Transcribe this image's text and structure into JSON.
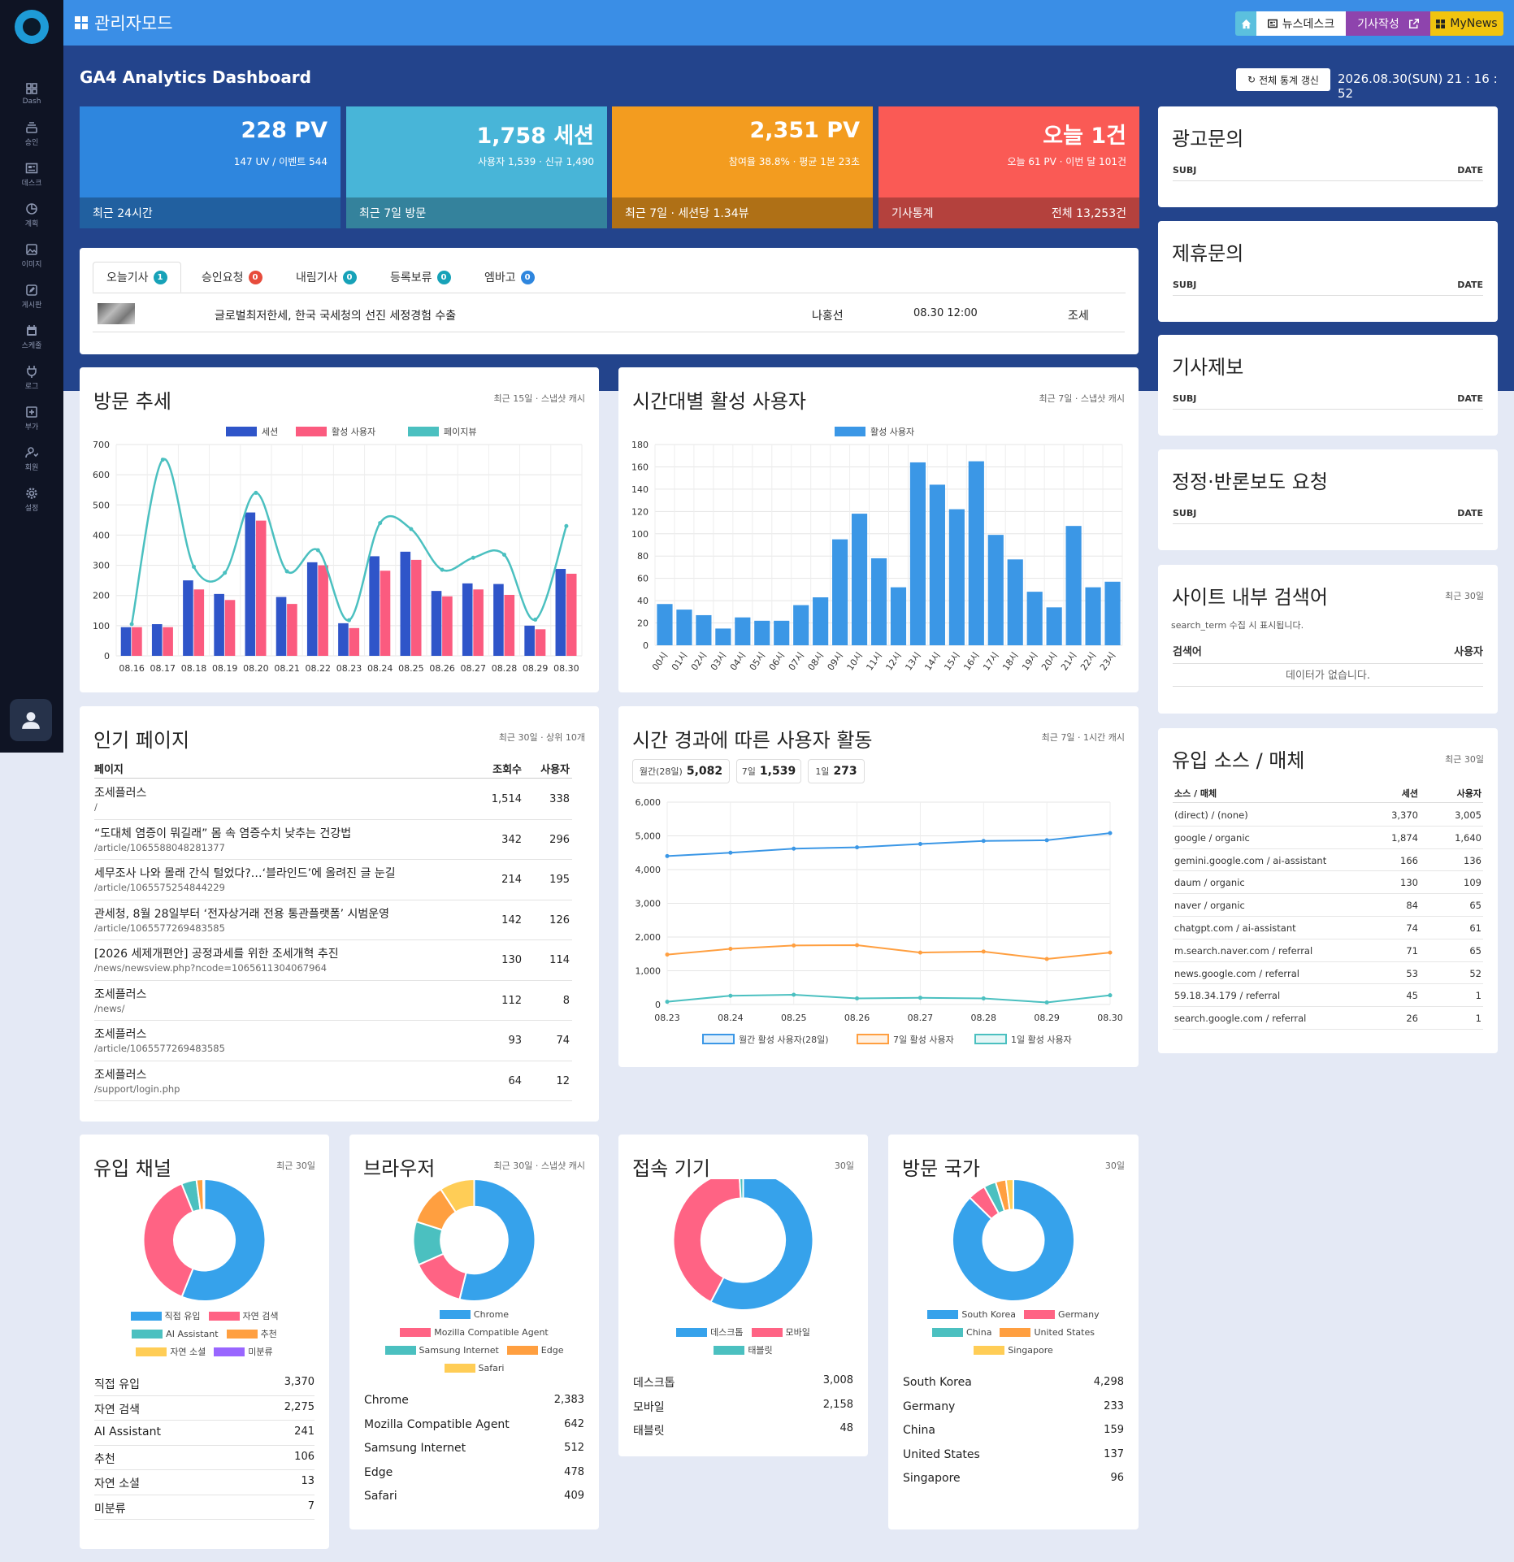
{
  "sidebar": {
    "items": [
      {
        "label": "Dash",
        "icon": "grid-icon"
      },
      {
        "label": "승인",
        "icon": "stack-icon"
      },
      {
        "label": "데스크",
        "icon": "newspaper-icon"
      },
      {
        "label": "계획",
        "icon": "pie-icon"
      },
      {
        "label": "이미지",
        "icon": "image-icon"
      },
      {
        "label": "게시판",
        "icon": "edit-icon"
      },
      {
        "label": "스케줄",
        "icon": "calendar-icon"
      },
      {
        "label": "로그",
        "icon": "plug-icon"
      },
      {
        "label": "부가",
        "icon": "plus-square-icon"
      },
      {
        "label": "회원",
        "icon": "user-icon"
      },
      {
        "label": "설정",
        "icon": "gear-icon"
      }
    ]
  },
  "topbar": {
    "title": "관리자모드",
    "newsdesk": "뉴스데스크",
    "write": "기사작성",
    "mynews": "MyNews"
  },
  "header": {
    "title": "GA4 Analytics Dashboard",
    "refresh": "전체 통계 갱신",
    "datetime": "2026.08.30(SUN) 21 : 16 : 52"
  },
  "kpis": [
    {
      "big": "228 PV",
      "sub": "147 UV  /  이벤트 544",
      "foot_left": "최근 24시간",
      "foot_right": "",
      "color": "#2e86de"
    },
    {
      "big": "1,758 세션",
      "sub": "사용자 1,539 · 신규 1,490",
      "foot_left": "최근 7일 방문",
      "foot_right": "",
      "color": "#48b5d8"
    },
    {
      "big": "2,351 PV",
      "sub": "참여율 38.8% · 평균 1분 23초",
      "foot_left": "최근 7일 · 세션당 1.34뷰",
      "foot_right": "",
      "color": "#f39c1f"
    },
    {
      "big": "오늘 1건",
      "sub": "오늘 61 PV · 이번 달 101건",
      "foot_left": "기사통계",
      "foot_right": "전체 13,253건",
      "color": "#fa5a55"
    }
  ],
  "tabs": [
    {
      "label": "오늘기사",
      "count": "1",
      "color": "#17a2b8"
    },
    {
      "label": "승인요청",
      "count": "0",
      "color": "#e74c3c"
    },
    {
      "label": "내림기사",
      "count": "0",
      "color": "#17a2b8"
    },
    {
      "label": "등록보류",
      "count": "0",
      "color": "#17a2b8"
    },
    {
      "label": "엠바고",
      "count": "0",
      "color": "#2e86de"
    }
  ],
  "article": {
    "title": "글로벌최저한세, 한국 국세청의 선진 세정경험 수출",
    "author": "나홍선",
    "time": "08.30 12:00",
    "section": "조세"
  },
  "side_inquiries": [
    {
      "title": "광고문의",
      "col1": "SUBJ",
      "col2": "DATE"
    },
    {
      "title": "제휴문의",
      "col1": "SUBJ",
      "col2": "DATE"
    },
    {
      "title": "기사제보",
      "col1": "SUBJ",
      "col2": "DATE"
    },
    {
      "title": "정정·반론보도 요청",
      "col1": "SUBJ",
      "col2": "DATE"
    }
  ],
  "search_terms": {
    "title": "사이트 내부 검색어",
    "note": "최근 30일",
    "hint": "search_term 수집 시 표시됩니다.",
    "col1": "검색어",
    "col2": "사용자",
    "empty": "데이터가 없습니다."
  },
  "sources": {
    "title": "유입 소스 / 매체",
    "note": "최근 30일",
    "headers": [
      "소스 / 매체",
      "세션",
      "사용자"
    ],
    "rows": [
      [
        "(direct) / (none)",
        "3,370",
        "3,005"
      ],
      [
        "google / organic",
        "1,874",
        "1,640"
      ],
      [
        "gemini.google.com / ai-assistant",
        "166",
        "136"
      ],
      [
        "daum / organic",
        "130",
        "109"
      ],
      [
        "naver / organic",
        "84",
        "65"
      ],
      [
        "chatgpt.com / ai-assistant",
        "74",
        "61"
      ],
      [
        "m.search.naver.com / referral",
        "71",
        "65"
      ],
      [
        "news.google.com / referral",
        "53",
        "52"
      ],
      [
        "59.18.34.179 / referral",
        "45",
        "1"
      ],
      [
        "search.google.com / referral",
        "26",
        "1"
      ]
    ]
  },
  "popular": {
    "title": "인기 페이지",
    "note": "최근 30일 · 상위 10개",
    "headers": [
      "페이지",
      "조회수",
      "사용자"
    ],
    "rows": [
      {
        "title": "조세플러스",
        "path": "/",
        "views": "1,514",
        "users": "338"
      },
      {
        "title": "“도대체 염증이 뭐길래” 몸 속 염증수치 낮추는 건강법",
        "path": "/article/1065588048281377",
        "views": "342",
        "users": "296"
      },
      {
        "title": "세무조사 나와 몰래 간식 털었다?…‘블라인드’에 올려진 글 눈길",
        "path": "/article/1065575254844229",
        "views": "214",
        "users": "195"
      },
      {
        "title": "관세청, 8월 28일부터 ‘전자상거래 전용 통관플랫폼’ 시범운영",
        "path": "/article/1065577269483585",
        "views": "142",
        "users": "126"
      },
      {
        "title": "[2026 세제개편안] 공정과세를 위한 조세개혁 추진",
        "path": "/news/newsview.php?ncode=1065611304067964",
        "views": "130",
        "users": "114"
      },
      {
        "title": "조세플러스",
        "path": "/news/",
        "views": "112",
        "users": "8"
      },
      {
        "title": "조세플러스",
        "path": "/article/1065577269483585",
        "views": "93",
        "users": "74"
      },
      {
        "title": "조세플러스",
        "path": "/support/login.php",
        "views": "64",
        "users": "12"
      }
    ]
  },
  "activity": {
    "title": "시간 경과에 따른 사용자 활동",
    "note": "최근 7일 · 1시간 캐시",
    "pills": [
      {
        "label": "월간(28일)",
        "value": "5,082"
      },
      {
        "label": "7일",
        "value": "1,539"
      },
      {
        "label": "1일",
        "value": "273"
      }
    ]
  },
  "chart_data": [
    {
      "type": "bar",
      "title": "방문 추세",
      "note": "최근 15일 · 스냅샷 캐시",
      "categories": [
        "08.16",
        "08.17",
        "08.18",
        "08.19",
        "08.20",
        "08.21",
        "08.22",
        "08.23",
        "08.24",
        "08.25",
        "08.26",
        "08.27",
        "08.28",
        "08.29",
        "08.30"
      ],
      "series": [
        {
          "name": "세션",
          "type": "bar",
          "color": "#2f55c9",
          "values": [
            95,
            105,
            250,
            205,
            475,
            195,
            310,
            108,
            330,
            345,
            215,
            240,
            238,
            100,
            288
          ]
        },
        {
          "name": "활성 사용자",
          "type": "bar",
          "color": "#fb5b7f",
          "values": [
            95,
            95,
            220,
            185,
            448,
            172,
            300,
            92,
            282,
            318,
            197,
            220,
            202,
            88,
            272
          ]
        },
        {
          "name": "페이지뷰",
          "type": "line",
          "color": "#4bc0c0",
          "values": [
            105,
            650,
            295,
            275,
            540,
            280,
            350,
            118,
            440,
            420,
            285,
            325,
            335,
            120,
            430
          ]
        }
      ],
      "yticks": [
        "0",
        "100",
        "200",
        "300",
        "400",
        "500",
        "600",
        "700"
      ],
      "ylim": [
        0,
        700
      ]
    },
    {
      "type": "bar",
      "title": "시간대별 활성 사용자",
      "note": "최근 7일 · 스냅샷 캐시",
      "categories": [
        "00시",
        "01시",
        "02시",
        "03시",
        "04시",
        "05시",
        "06시",
        "07시",
        "08시",
        "09시",
        "10시",
        "11시",
        "12시",
        "13시",
        "14시",
        "15시",
        "16시",
        "17시",
        "18시",
        "19시",
        "20시",
        "21시",
        "22시",
        "23시"
      ],
      "series": [
        {
          "name": "활성 사용자",
          "color": "#3b97e6",
          "values": [
            37,
            32,
            27,
            15,
            25,
            22,
            22,
            36,
            43,
            95,
            118,
            78,
            52,
            164,
            144,
            122,
            165,
            99,
            77,
            48,
            34,
            107,
            52,
            57
          ]
        }
      ],
      "yticks": [
        "0",
        "20",
        "40",
        "60",
        "80",
        "100",
        "120",
        "140",
        "160",
        "180"
      ],
      "ylim": [
        0,
        180
      ]
    },
    {
      "type": "line",
      "title": "시간 경과에 따른 사용자 활동",
      "categories": [
        "08.23",
        "08.24",
        "08.25",
        "08.26",
        "08.27",
        "08.28",
        "08.29",
        "08.30"
      ],
      "series": [
        {
          "name": "월간 활성 사용자(28일)",
          "color": "#3b97e6",
          "values": [
            4400,
            4500,
            4620,
            4660,
            4760,
            4850,
            4870,
            5082
          ]
        },
        {
          "name": "7일 활성 사용자",
          "color": "#ff9f40",
          "values": [
            1480,
            1650,
            1750,
            1760,
            1540,
            1570,
            1350,
            1539
          ]
        },
        {
          "name": "1일 활성 사용자",
          "color": "#4bc0c0",
          "values": [
            80,
            260,
            290,
            180,
            200,
            180,
            60,
            273
          ]
        }
      ],
      "yticks": [
        "0",
        "1,000",
        "2,000",
        "3,000",
        "4,000",
        "5,000",
        "6,000"
      ],
      "ylim": [
        0,
        6000
      ]
    },
    {
      "type": "pie",
      "title": "유입 채널",
      "note": "최근 30일",
      "labels": [
        "직접 유입",
        "자연 검색",
        "AI Assistant",
        "추천",
        "자연 소셜",
        "미분류"
      ],
      "values": [
        3370,
        2275,
        241,
        106,
        13,
        7
      ],
      "display": [
        "3,370",
        "2,275",
        "241",
        "106",
        "13",
        "7"
      ],
      "colors": [
        "#36a2eb",
        "#ff6384",
        "#4bc0c0",
        "#ff9f40",
        "#ffcd56",
        "#9966ff"
      ]
    },
    {
      "type": "pie",
      "title": "브라우저",
      "note": "최근 30일 · 스냅샷 캐시",
      "labels": [
        "Chrome",
        "Mozilla Compatible Agent",
        "Samsung Internet",
        "Edge",
        "Safari"
      ],
      "values": [
        2383,
        642,
        512,
        478,
        409
      ],
      "display": [
        "2,383",
        "642",
        "512",
        "478",
        "409"
      ],
      "colors": [
        "#36a2eb",
        "#ff6384",
        "#4bc0c0",
        "#ff9f40",
        "#ffcd56"
      ]
    },
    {
      "type": "pie",
      "title": "접속 기기",
      "note": "30일",
      "labels": [
        "데스크톱",
        "모바일",
        "태블릿"
      ],
      "values": [
        3008,
        2158,
        48
      ],
      "display": [
        "3,008",
        "2,158",
        "48"
      ],
      "colors": [
        "#36a2eb",
        "#ff6384",
        "#4bc0c0"
      ]
    },
    {
      "type": "pie",
      "title": "방문 국가",
      "note": "30일",
      "labels": [
        "South Korea",
        "Germany",
        "China",
        "United States",
        "Singapore"
      ],
      "values": [
        4298,
        233,
        159,
        137,
        96
      ],
      "display": [
        "4,298",
        "233",
        "159",
        "137",
        "96"
      ],
      "colors": [
        "#36a2eb",
        "#ff6384",
        "#4bc0c0",
        "#ff9f40",
        "#ffcd56"
      ]
    }
  ]
}
